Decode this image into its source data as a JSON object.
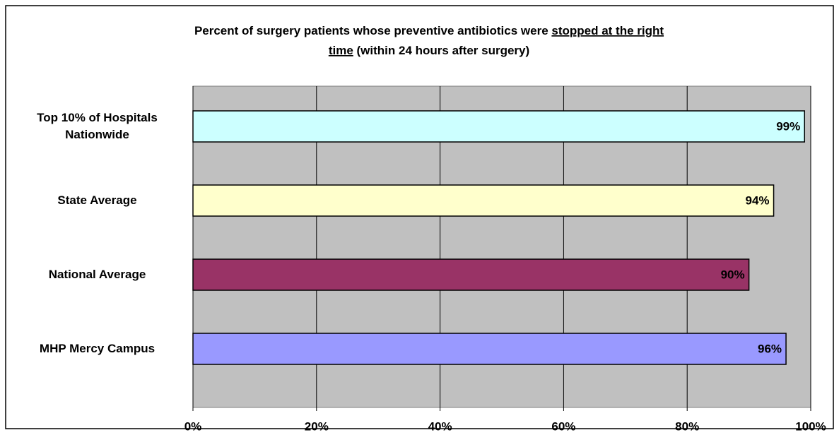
{
  "chart_data": {
    "type": "hbar",
    "title_lines": [
      [
        {
          "text": "Percent of surgery patients whose preventive antibiotics were ",
          "underline": false
        },
        {
          "text": "stopped at the right",
          "underline": true
        }
      ],
      [
        {
          "text": "time",
          "underline": true
        },
        {
          "text": " (within 24 hours after surgery)",
          "underline": false
        }
      ]
    ],
    "categories": [
      "Top 10% of Hospitals Nationwide",
      "State Average",
      "National Average",
      "MHP Mercy Campus"
    ],
    "values": [
      99,
      94,
      90,
      96
    ],
    "value_labels": [
      "99%",
      "94%",
      "90%",
      "96%"
    ],
    "colors": [
      "#ccffff",
      "#ffffcc",
      "#993366",
      "#9999ff"
    ],
    "xlim": [
      0,
      100
    ],
    "xticks": [
      {
        "value": 0,
        "label": "0%"
      },
      {
        "value": 20,
        "label": "20%"
      },
      {
        "value": 40,
        "label": "40%"
      },
      {
        "value": 60,
        "label": "60%"
      },
      {
        "value": 80,
        "label": "80%"
      },
      {
        "value": 100,
        "label": "100%"
      }
    ],
    "grid": true
  }
}
